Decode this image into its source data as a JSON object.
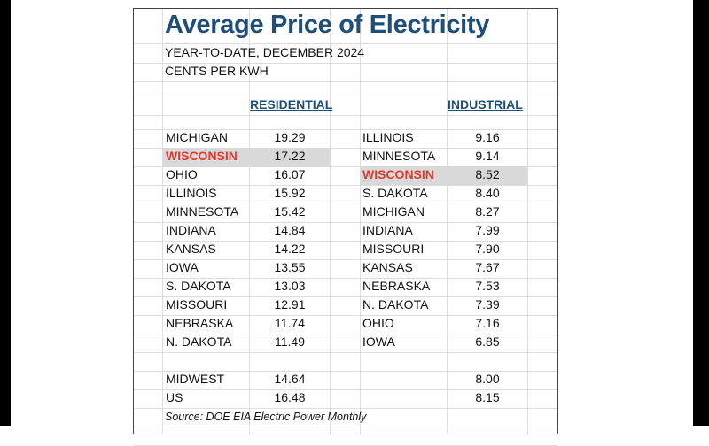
{
  "title": "Average Price of Electricity",
  "subtitle1": "YEAR-TO-DATE, DECEMBER 2024",
  "subtitle2": "CENTS PER KWH",
  "residential_header": "RESIDENTIAL",
  "industrial_header": "INDUSTRIAL",
  "highlight_state": "WISCONSIN",
  "colors": {
    "title": "#1f4e79",
    "highlight_text": "#e03a2e",
    "highlight_fill": "#d9d9d9"
  },
  "residential": [
    {
      "state": "MICHIGAN",
      "value": "19.29"
    },
    {
      "state": "WISCONSIN",
      "value": "17.22"
    },
    {
      "state": "OHIO",
      "value": "16.07"
    },
    {
      "state": "ILLINOIS",
      "value": "15.92"
    },
    {
      "state": "MINNESOTA",
      "value": "15.42"
    },
    {
      "state": "INDIANA",
      "value": "14.84"
    },
    {
      "state": "KANSAS",
      "value": "14.22"
    },
    {
      "state": "IOWA",
      "value": "13.55"
    },
    {
      "state": "S. DAKOTA",
      "value": "13.03"
    },
    {
      "state": "MISSOURI",
      "value": "12.91"
    },
    {
      "state": "NEBRASKA",
      "value": "11.74"
    },
    {
      "state": "N. DAKOTA",
      "value": "11.49"
    }
  ],
  "industrial": [
    {
      "state": "ILLINOIS",
      "value": "9.16"
    },
    {
      "state": "MINNESOTA",
      "value": "9.14"
    },
    {
      "state": "WISCONSIN",
      "value": "8.52"
    },
    {
      "state": "S. DAKOTA",
      "value": "8.40"
    },
    {
      "state": "MICHIGAN",
      "value": "8.27"
    },
    {
      "state": "INDIANA",
      "value": "7.99"
    },
    {
      "state": "MISSOURI",
      "value": "7.90"
    },
    {
      "state": "KANSAS",
      "value": "7.67"
    },
    {
      "state": "NEBRASKA",
      "value": "7.53"
    },
    {
      "state": "N. DAKOTA",
      "value": "7.39"
    },
    {
      "state": "OHIO",
      "value": "7.16"
    },
    {
      "state": "IOWA",
      "value": "6.85"
    }
  ],
  "summary": [
    {
      "label": "MIDWEST",
      "residential": "14.64",
      "industrial": "8.00"
    },
    {
      "label": "US",
      "residential": "16.48",
      "industrial": "8.15"
    }
  ],
  "source": "Source: DOE EIA Electric Power Monthly"
}
